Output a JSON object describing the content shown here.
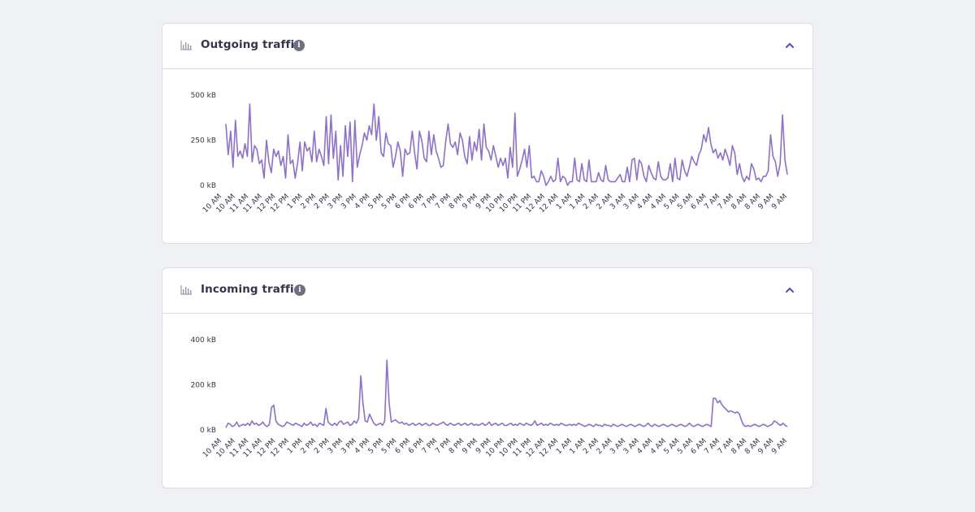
{
  "colors": {
    "accent": "#673de6",
    "line": "#8c6fd6",
    "text": "#36344d",
    "info": "#6d7081"
  },
  "icons": {
    "chart": "bar-chart-icon",
    "info": "info-icon",
    "collapse": "chevron-up-icon"
  },
  "panels": [
    {
      "title": "Outgoing traffic",
      "info_glyph": "i"
    },
    {
      "title": "Incoming traffic",
      "info_glyph": "i"
    }
  ],
  "chart_data": [
    {
      "type": "line",
      "title": "Outgoing traffic",
      "unit": "kB",
      "ylim": [
        0,
        500
      ],
      "y_ticks": [
        "500 kB",
        "250 kB",
        "0 kB"
      ],
      "y_tick_values": [
        500,
        250,
        0
      ],
      "x_labels": [
        "10 AM",
        "10 AM",
        "11 AM",
        "11 AM",
        "12 PM",
        "12 PM",
        "1 PM",
        "2 PM",
        "2 PM",
        "3 PM",
        "3 PM",
        "4 PM",
        "5 PM",
        "5 PM",
        "6 PM",
        "6 PM",
        "7 PM",
        "7 PM",
        "8 PM",
        "9 PM",
        "9 PM",
        "10 PM",
        "10 PM",
        "11 PM",
        "12 AM",
        "12 AM",
        "1 AM",
        "1 AM",
        "2 AM",
        "2 AM",
        "3 AM",
        "3 AM",
        "4 AM",
        "4 AM",
        "5 AM",
        "5 AM",
        "6 AM",
        "7 AM",
        "7 AM",
        "8 AM",
        "8 AM",
        "9 AM",
        "9 AM"
      ],
      "values": [
        340,
        170,
        300,
        100,
        360,
        160,
        190,
        150,
        230,
        160,
        450,
        130,
        220,
        200,
        120,
        140,
        40,
        250,
        130,
        70,
        200,
        160,
        190,
        110,
        160,
        40,
        280,
        120,
        140,
        40,
        120,
        240,
        80,
        240,
        190,
        210,
        130,
        300,
        130,
        200,
        160,
        110,
        380,
        120,
        390,
        150,
        300,
        30,
        220,
        50,
        330,
        160,
        350,
        20,
        360,
        100,
        170,
        220,
        290,
        250,
        330,
        280,
        450,
        250,
        380,
        180,
        160,
        290,
        230,
        220,
        100,
        160,
        240,
        190,
        50,
        200,
        170,
        180,
        300,
        180,
        90,
        300,
        250,
        150,
        130,
        300,
        170,
        280,
        190,
        150,
        100,
        110,
        240,
        340,
        230,
        210,
        240,
        170,
        290,
        250,
        160,
        120,
        270,
        140,
        240,
        190,
        310,
        140,
        340,
        210,
        190,
        140,
        220,
        160,
        100,
        150,
        110,
        150,
        40,
        210,
        100,
        400,
        50,
        90,
        140,
        200,
        100,
        220,
        40,
        50,
        20,
        20,
        80,
        50,
        0,
        20,
        50,
        20,
        30,
        150,
        20,
        50,
        40,
        0,
        20,
        20,
        150,
        30,
        20,
        120,
        30,
        20,
        140,
        20,
        20,
        20,
        70,
        30,
        20,
        110,
        30,
        20,
        20,
        20,
        40,
        60,
        20,
        20,
        100,
        20,
        140,
        150,
        30,
        140,
        120,
        50,
        20,
        110,
        70,
        40,
        30,
        130,
        50,
        30,
        30,
        40,
        120,
        20,
        150,
        40,
        30,
        140,
        80,
        50,
        100,
        160,
        130,
        110,
        170,
        200,
        280,
        240,
        320,
        230,
        180,
        200,
        150,
        180,
        140,
        200,
        160,
        110,
        220,
        180,
        60,
        120,
        50,
        20,
        50,
        30,
        120,
        90,
        30,
        40,
        20,
        50,
        50,
        80,
        280,
        160,
        130,
        50,
        120,
        390,
        140,
        60
      ]
    },
    {
      "type": "line",
      "title": "Incoming traffic",
      "unit": "kB",
      "ylim": [
        0,
        400
      ],
      "y_ticks": [
        "400 kB",
        "200 kB",
        "0 kB"
      ],
      "y_tick_values": [
        400,
        200,
        0
      ],
      "x_labels": [
        "10 AM",
        "10 AM",
        "11 AM",
        "11 AM",
        "12 PM",
        "12 PM",
        "1 PM",
        "2 PM",
        "2 PM",
        "3 PM",
        "3 PM",
        "4 PM",
        "5 PM",
        "5 PM",
        "6 PM",
        "6 PM",
        "7 PM",
        "7 PM",
        "8 PM",
        "9 PM",
        "9 PM",
        "10 PM",
        "10 PM",
        "11 PM",
        "12 AM",
        "12 AM",
        "1 AM",
        "1 AM",
        "2 AM",
        "2 AM",
        "3 AM",
        "3 AM",
        "4 AM",
        "4 AM",
        "5 AM",
        "5 AM",
        "6 AM",
        "7 AM",
        "7 AM",
        "8 AM",
        "8 AM",
        "9 AM",
        "9 AM"
      ],
      "values": [
        10,
        30,
        25,
        15,
        20,
        35,
        15,
        20,
        25,
        20,
        30,
        20,
        40,
        25,
        30,
        20,
        25,
        35,
        20,
        15,
        25,
        100,
        110,
        40,
        25,
        20,
        15,
        20,
        35,
        30,
        25,
        20,
        30,
        25,
        20,
        15,
        30,
        20,
        25,
        35,
        20,
        25,
        15,
        30,
        25,
        20,
        95,
        35,
        25,
        20,
        30,
        20,
        35,
        40,
        25,
        30,
        35,
        20,
        25,
        40,
        30,
        50,
        240,
        120,
        40,
        35,
        70,
        50,
        30,
        20,
        25,
        30,
        20,
        40,
        310,
        120,
        35,
        40,
        45,
        35,
        30,
        35,
        25,
        30,
        20,
        25,
        30,
        20,
        25,
        30,
        20,
        25,
        30,
        20,
        20,
        30,
        25,
        20,
        25,
        30,
        35,
        25,
        20,
        30,
        25,
        20,
        25,
        30,
        20,
        25,
        30,
        20,
        25,
        30,
        20,
        25,
        20,
        25,
        30,
        20,
        25,
        35,
        20,
        25,
        30,
        20,
        25,
        30,
        20,
        20,
        25,
        30,
        20,
        25,
        20,
        30,
        25,
        20,
        30,
        25,
        20,
        25,
        40,
        20,
        25,
        30,
        20,
        25,
        20,
        30,
        25,
        20,
        25,
        20,
        30,
        25,
        20,
        20,
        25,
        20,
        25,
        20,
        30,
        25,
        20,
        15,
        20,
        25,
        20,
        15,
        25,
        20,
        20,
        15,
        25,
        20,
        20,
        15,
        25,
        20,
        15,
        20,
        25,
        20,
        15,
        20,
        25,
        20,
        15,
        20,
        25,
        20,
        15,
        20,
        30,
        20,
        15,
        25,
        20,
        15,
        20,
        25,
        20,
        15,
        20,
        25,
        20,
        15,
        20,
        25,
        20,
        15,
        20,
        30,
        20,
        15,
        20,
        25,
        20,
        15,
        20,
        25,
        20,
        15,
        140,
        140,
        120,
        130,
        110,
        100,
        90,
        80,
        85,
        80,
        75,
        80,
        70,
        40,
        20,
        15,
        20,
        15,
        20,
        25,
        20,
        15,
        20,
        25,
        20,
        15,
        20,
        25,
        40,
        35,
        25,
        20,
        30,
        20,
        15
      ]
    }
  ]
}
